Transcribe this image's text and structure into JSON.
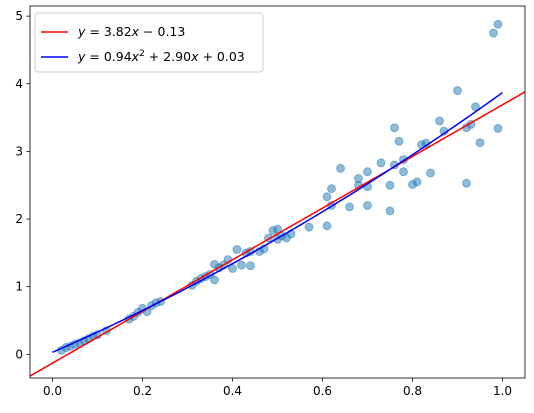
{
  "chart_data": {
    "type": "scatter",
    "xlim": [
      -0.05,
      1.05
    ],
    "ylim": [
      -0.35,
      5.15
    ],
    "xticks": [
      "0.0",
      "0.2",
      "0.4",
      "0.6",
      "0.8",
      "1.0"
    ],
    "xtick_values": [
      0.0,
      0.2,
      0.4,
      0.6,
      0.8,
      1.0
    ],
    "yticks": [
      "0",
      "1",
      "2",
      "3",
      "4",
      "5"
    ],
    "ytick_values": [
      0,
      1,
      2,
      3,
      4,
      5
    ],
    "grid": false,
    "legend_position": "top-left",
    "scatter": {
      "color": "#1f77b4",
      "points": [
        [
          0.02,
          0.06
        ],
        [
          0.03,
          0.1
        ],
        [
          0.04,
          0.12
        ],
        [
          0.05,
          0.15
        ],
        [
          0.06,
          0.17
        ],
        [
          0.07,
          0.2
        ],
        [
          0.08,
          0.23
        ],
        [
          0.09,
          0.27
        ],
        [
          0.1,
          0.29
        ],
        [
          0.12,
          0.35
        ],
        [
          0.17,
          0.52
        ],
        [
          0.18,
          0.56
        ],
        [
          0.19,
          0.62
        ],
        [
          0.2,
          0.68
        ],
        [
          0.21,
          0.63
        ],
        [
          0.22,
          0.72
        ],
        [
          0.23,
          0.76
        ],
        [
          0.24,
          0.78
        ],
        [
          0.31,
          1.02
        ],
        [
          0.32,
          1.08
        ],
        [
          0.33,
          1.12
        ],
        [
          0.34,
          1.15
        ],
        [
          0.35,
          1.18
        ],
        [
          0.36,
          1.1
        ],
        [
          0.36,
          1.33
        ],
        [
          0.37,
          1.28
        ],
        [
          0.38,
          1.32
        ],
        [
          0.39,
          1.4
        ],
        [
          0.4,
          1.27
        ],
        [
          0.41,
          1.55
        ],
        [
          0.42,
          1.32
        ],
        [
          0.43,
          1.5
        ],
        [
          0.44,
          1.52
        ],
        [
          0.44,
          1.31
        ],
        [
          0.46,
          1.52
        ],
        [
          0.47,
          1.56
        ],
        [
          0.48,
          1.72
        ],
        [
          0.49,
          1.83
        ],
        [
          0.5,
          1.7
        ],
        [
          0.5,
          1.85
        ],
        [
          0.51,
          1.75
        ],
        [
          0.52,
          1.72
        ],
        [
          0.53,
          1.78
        ],
        [
          0.57,
          1.88
        ],
        [
          0.61,
          2.33
        ],
        [
          0.61,
          1.9
        ],
        [
          0.62,
          2.2
        ],
        [
          0.62,
          2.45
        ],
        [
          0.64,
          2.75
        ],
        [
          0.66,
          2.18
        ],
        [
          0.68,
          2.6
        ],
        [
          0.68,
          2.5
        ],
        [
          0.7,
          2.48
        ],
        [
          0.7,
          2.2
        ],
        [
          0.7,
          2.7
        ],
        [
          0.73,
          2.83
        ],
        [
          0.75,
          2.12
        ],
        [
          0.75,
          2.5
        ],
        [
          0.76,
          3.35
        ],
        [
          0.76,
          2.8
        ],
        [
          0.77,
          3.15
        ],
        [
          0.78,
          2.7
        ],
        [
          0.78,
          2.88
        ],
        [
          0.8,
          2.51
        ],
        [
          0.81,
          2.55
        ],
        [
          0.82,
          3.1
        ],
        [
          0.83,
          3.12
        ],
        [
          0.84,
          2.68
        ],
        [
          0.86,
          3.45
        ],
        [
          0.87,
          3.3
        ],
        [
          0.9,
          3.9
        ],
        [
          0.92,
          3.35
        ],
        [
          0.92,
          2.53
        ],
        [
          0.93,
          3.4
        ],
        [
          0.94,
          3.66
        ],
        [
          0.95,
          3.13
        ],
        [
          0.98,
          4.75
        ],
        [
          0.99,
          4.88
        ],
        [
          0.99,
          3.34
        ]
      ]
    },
    "series": [
      {
        "name": "$y = 3.82x - 0.13$",
        "color": "#ff0000",
        "kind": "linear",
        "coefficients": {
          "a": 3.82,
          "b": -0.13
        }
      },
      {
        "name": "$y = 0.94x^2 + 2.90x + 0.03$",
        "color": "#0000ff",
        "kind": "quadratic",
        "coefficients": {
          "a": 0.94,
          "b": 2.9,
          "c": 0.03
        },
        "domain": [
          0.0,
          1.0
        ]
      }
    ]
  }
}
